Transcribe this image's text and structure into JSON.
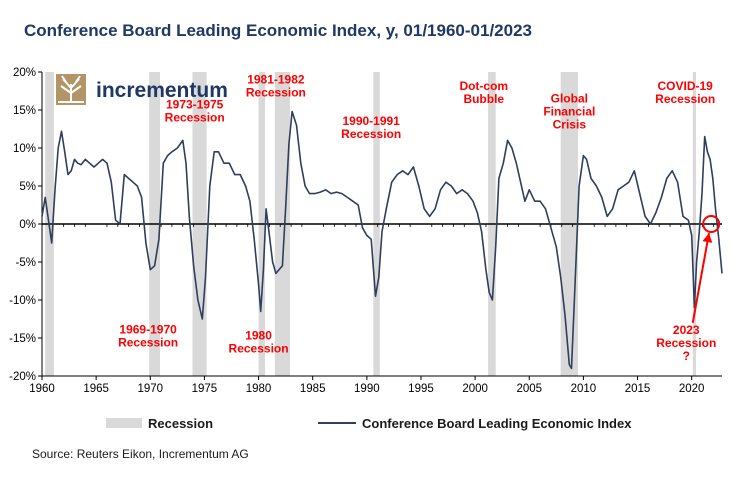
{
  "title": "Conference Board Leading Economic Index, y, 01/1960-01/2023",
  "logo_text": "incrementum",
  "source": "Source: Reuters Eikon, Incrementum AG",
  "colors": {
    "series": "#2f3e5c",
    "recession": "#d9d9d9",
    "annotation": "#ff0000",
    "title": "#1f3864"
  },
  "chart_data": {
    "type": "line",
    "xlim": [
      1960,
      2022.8
    ],
    "ylim": [
      -20,
      20
    ],
    "x_ticks": [
      1960,
      1965,
      1970,
      1975,
      1980,
      1985,
      1990,
      1995,
      2000,
      2005,
      2010,
      2015,
      2020
    ],
    "x_tick_labels": [
      "1960",
      "1965",
      "1970",
      "1975",
      "1980",
      "1985",
      "1990",
      "1995",
      "2000",
      "2005",
      "2010",
      "2015",
      "2020"
    ],
    "y_ticks": [
      20,
      15,
      10,
      5,
      0,
      -5,
      -10,
      -15,
      -20
    ],
    "y_tick_labels": [
      "20%",
      "15%",
      "10%",
      "5%",
      "0%",
      "-5%",
      "-10%",
      "-15%",
      "-20%"
    ],
    "grid": false,
    "legend": [
      {
        "label": "Recession",
        "kind": "bar"
      },
      {
        "label": "Conference Board Leading Economic Index",
        "kind": "line"
      }
    ],
    "legend_position": "bottom",
    "recessions": [
      [
        1960.3,
        1961.1
      ],
      [
        1969.9,
        1970.9
      ],
      [
        1973.9,
        1975.2
      ],
      [
        1980.0,
        1980.6
      ],
      [
        1981.5,
        1982.9
      ],
      [
        1990.6,
        1991.2
      ],
      [
        2001.2,
        2001.9
      ],
      [
        2007.9,
        2009.5
      ],
      [
        2020.1,
        2020.4
      ]
    ],
    "annotations": [
      {
        "lines": [
          "1969-1970",
          "Recession"
        ],
        "x": 1969.8,
        "y": -14.4
      },
      {
        "lines": [
          "1973-1975",
          "Recession"
        ],
        "x": 1974.1,
        "y": 15.2
      },
      {
        "lines": [
          "1980",
          "Recession"
        ],
        "x": 1980.0,
        "y": -15.2
      },
      {
        "lines": [
          "1981-1982",
          "Recession"
        ],
        "x": 1981.6,
        "y": 18.5
      },
      {
        "lines": [
          "1990-1991",
          "Recession"
        ],
        "x": 1990.4,
        "y": 13.0
      },
      {
        "lines": [
          "Dot-com",
          "Bubble"
        ],
        "x": 2000.8,
        "y": 17.6
      },
      {
        "lines": [
          "Global",
          "Financial",
          "Crisis"
        ],
        "x": 2008.7,
        "y": 16.0
      },
      {
        "lines": [
          "COVID-19",
          "Recession"
        ],
        "x": 2019.4,
        "y": 17.6
      },
      {
        "lines": [
          "2023",
          "Recession",
          "?"
        ],
        "x": 2019.5,
        "y": -14.5
      }
    ],
    "highlight": {
      "x": 2021.8,
      "y": 0.0
    },
    "arrow": {
      "from": [
        2020.1,
        -13.0
      ],
      "to": [
        2021.6,
        -1.2
      ]
    },
    "series": [
      {
        "name": "Conference Board Leading Economic Index",
        "x": [
          1960.0,
          1960.3,
          1960.6,
          1960.9,
          1961.2,
          1961.5,
          1961.8,
          1962.1,
          1962.4,
          1962.7,
          1963.0,
          1963.3,
          1963.6,
          1964.0,
          1964.4,
          1964.8,
          1965.2,
          1965.6,
          1966.0,
          1966.4,
          1966.8,
          1967.2,
          1967.6,
          1968.0,
          1968.4,
          1968.8,
          1969.2,
          1969.6,
          1970.0,
          1970.4,
          1970.8,
          1971.2,
          1971.6,
          1972.0,
          1972.5,
          1973.0,
          1973.3,
          1973.6,
          1974.0,
          1974.4,
          1974.8,
          1975.1,
          1975.5,
          1975.9,
          1976.3,
          1976.8,
          1977.3,
          1977.8,
          1978.3,
          1978.8,
          1979.2,
          1979.6,
          1980.0,
          1980.2,
          1980.45,
          1980.7,
          1981.0,
          1981.3,
          1981.6,
          1981.9,
          1982.2,
          1982.5,
          1982.8,
          1983.1,
          1983.5,
          1983.9,
          1984.3,
          1984.7,
          1985.2,
          1985.7,
          1986.2,
          1986.7,
          1987.2,
          1987.7,
          1988.2,
          1988.7,
          1989.2,
          1989.6,
          1990.0,
          1990.4,
          1990.8,
          1991.1,
          1991.4,
          1991.8,
          1992.3,
          1992.8,
          1993.3,
          1993.8,
          1994.3,
          1994.8,
          1995.3,
          1995.8,
          1996.3,
          1996.8,
          1997.3,
          1997.8,
          1998.3,
          1998.8,
          1999.3,
          1999.8,
          2000.2,
          2000.6,
          2001.0,
          2001.3,
          2001.6,
          2001.9,
          2002.2,
          2002.6,
          2003.0,
          2003.4,
          2003.8,
          2004.2,
          2004.6,
          2005.0,
          2005.5,
          2006.0,
          2006.5,
          2007.0,
          2007.5,
          2007.9,
          2008.3,
          2008.7,
          2008.9,
          2009.2,
          2009.6,
          2010.0,
          2010.3,
          2010.7,
          2011.2,
          2011.7,
          2012.2,
          2012.7,
          2013.2,
          2013.7,
          2014.2,
          2014.7,
          2015.2,
          2015.7,
          2016.2,
          2016.7,
          2017.2,
          2017.7,
          2018.2,
          2018.7,
          2019.2,
          2019.7,
          2020.0,
          2020.25,
          2020.45,
          2020.7,
          2020.95,
          2021.2,
          2021.45,
          2021.7,
          2021.95,
          2022.2,
          2022.5,
          2022.8
        ],
        "values": [
          1.0,
          3.5,
          0.5,
          -2.5,
          4.5,
          10.0,
          12.2,
          9.5,
          6.5,
          7.0,
          8.5,
          8.0,
          7.8,
          8.5,
          8.0,
          7.5,
          8.0,
          8.5,
          8.0,
          5.5,
          0.5,
          0.0,
          6.5,
          6.0,
          5.5,
          5.0,
          3.5,
          -2.5,
          -6.0,
          -5.5,
          -2.0,
          8.0,
          9.0,
          9.5,
          10.0,
          11.0,
          8.0,
          1.0,
          -5.5,
          -10.0,
          -12.5,
          -7.0,
          5.0,
          9.5,
          9.5,
          8.0,
          8.0,
          6.5,
          6.5,
          5.0,
          3.0,
          -2.0,
          -8.0,
          -11.5,
          -6.0,
          2.0,
          -1.5,
          -5.0,
          -6.5,
          -6.0,
          -5.5,
          2.0,
          10.5,
          14.8,
          13.0,
          8.0,
          5.0,
          4.0,
          4.0,
          4.2,
          4.5,
          4.0,
          4.2,
          4.0,
          3.5,
          3.0,
          2.5,
          -0.5,
          -1.5,
          -2.0,
          -9.5,
          -7.0,
          -1.0,
          2.0,
          5.5,
          6.5,
          7.0,
          6.5,
          7.5,
          5.0,
          2.0,
          1.0,
          2.0,
          4.5,
          5.5,
          5.0,
          4.0,
          4.5,
          4.0,
          3.0,
          1.5,
          -1.0,
          -6.0,
          -9.0,
          -10.0,
          -3.0,
          6.0,
          8.0,
          11.0,
          10.0,
          8.0,
          5.5,
          3.0,
          4.5,
          3.0,
          3.0,
          2.0,
          -0.5,
          -3.0,
          -7.0,
          -12.0,
          -18.5,
          -19.0,
          -9.0,
          5.0,
          9.0,
          8.5,
          6.0,
          5.0,
          3.5,
          1.0,
          2.0,
          4.5,
          5.0,
          5.5,
          7.0,
          4.0,
          1.0,
          0.0,
          1.5,
          3.5,
          6.0,
          7.0,
          5.5,
          1.0,
          0.5,
          -1.5,
          -11.0,
          -5.0,
          -1.0,
          4.0,
          11.5,
          9.5,
          8.5,
          6.0,
          2.0,
          -2.0,
          -6.5
        ]
      }
    ]
  }
}
